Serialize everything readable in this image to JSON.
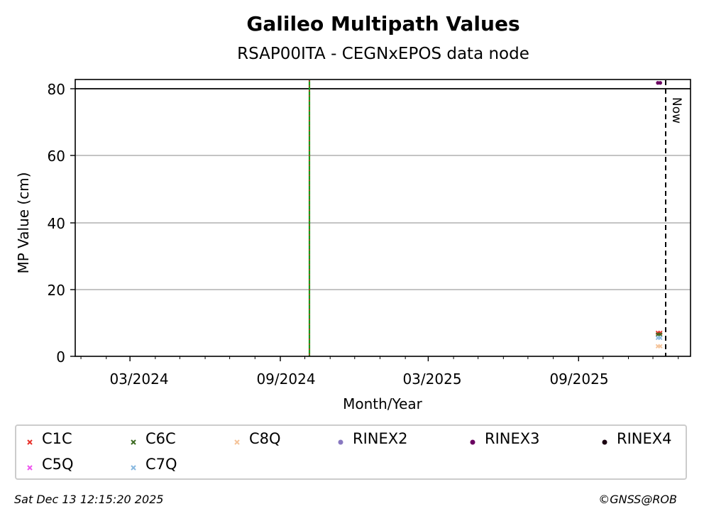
{
  "chart_data": {
    "type": "scatter",
    "title": "Galileo Multipath Values",
    "subtitle": "RSAP00ITA - CEGNxEPOS data node",
    "xlabel": "Month/Year",
    "ylabel": "MP Value (cm)",
    "x_ticks": [
      "03/2024",
      "09/2024",
      "03/2025",
      "09/2025"
    ],
    "y_ticks": [
      0,
      20,
      40,
      60,
      80
    ],
    "ylim": [
      0,
      82.5
    ],
    "grid": "y",
    "now_label": "Now",
    "series": [
      {
        "name": "C1C",
        "marker": "x",
        "color": "#e8312a",
        "points": [
          {
            "x": "2025-12-07",
            "y": 7
          },
          {
            "x": "2025-12-10",
            "y": 7
          }
        ]
      },
      {
        "name": "C6C",
        "marker": "x",
        "color": "#3d6b22",
        "points": [
          {
            "x": "2025-12-07",
            "y": 6.5
          },
          {
            "x": "2025-12-10",
            "y": 6.5
          }
        ]
      },
      {
        "name": "C8Q",
        "marker": "x",
        "color": "#f5c49a",
        "points": [
          {
            "x": "2025-12-07",
            "y": 3
          },
          {
            "x": "2025-12-10",
            "y": 3
          }
        ]
      },
      {
        "name": "RINEX2",
        "marker": "dot",
        "color": "#8878c0",
        "points": []
      },
      {
        "name": "RINEX3",
        "marker": "dot",
        "color": "#6a0060",
        "points": [
          {
            "x": "2025-12-07",
            "y": 81.5
          },
          {
            "x": "2025-12-10",
            "y": 81.5
          }
        ]
      },
      {
        "name": "RINEX4",
        "marker": "dot",
        "color": "#1a0010",
        "points": []
      },
      {
        "name": "C5Q",
        "marker": "x",
        "color": "#ee55ee",
        "points": []
      },
      {
        "name": "C7Q",
        "marker": "x",
        "color": "#88b8e0",
        "points": [
          {
            "x": "2025-12-07",
            "y": 5.5
          },
          {
            "x": "2025-12-10",
            "y": 5.5
          }
        ]
      }
    ]
  },
  "footer": {
    "timestamp": "Sat Dec 13 12:15:20 2025",
    "copyright": "©GNSS@ROB"
  }
}
